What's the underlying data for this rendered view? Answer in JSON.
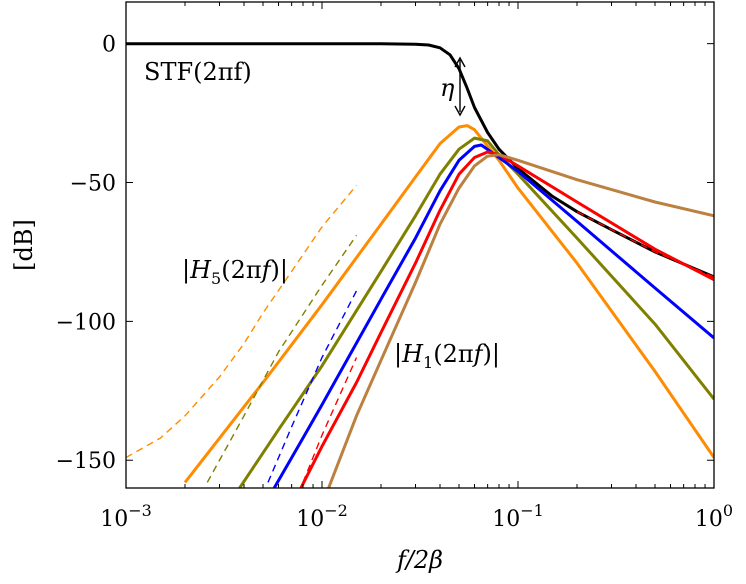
{
  "chart_data": {
    "type": "line",
    "title": "",
    "xlabel": "f/2β",
    "ylabel": "[dB]",
    "xscale": "log",
    "xlim": [
      0.001,
      1
    ],
    "ylim": [
      -160,
      15
    ],
    "grid": false,
    "xticks": [
      {
        "value": 0.001,
        "base": "10",
        "exp": "−3"
      },
      {
        "value": 0.01,
        "base": "10",
        "exp": "−2"
      },
      {
        "value": 0.1,
        "base": "10",
        "exp": "−1"
      },
      {
        "value": 1,
        "base": "10",
        "exp": "0"
      }
    ],
    "yticks": [
      {
        "value": 0,
        "label": "0"
      },
      {
        "value": -50,
        "label": "−50"
      },
      {
        "value": -100,
        "label": "−100"
      },
      {
        "value": -150,
        "label": "−150"
      }
    ],
    "annotations": {
      "stf": "STF(2πf)",
      "eta": "η",
      "h5": "|H5(2πf)|",
      "h1": "|H1(2πf)|"
    },
    "series": [
      {
        "name": "STF(2πf)",
        "color": "#000000",
        "dashed": false,
        "x": [
          0.001,
          0.02,
          0.03,
          0.035,
          0.04,
          0.045,
          0.05,
          0.055,
          0.06,
          0.07,
          0.08,
          0.1,
          0.15,
          0.2,
          0.3,
          0.5,
          1
        ],
        "y": [
          0,
          0,
          -0.2,
          -0.5,
          -1.5,
          -4,
          -9,
          -16,
          -23,
          -32,
          -38,
          -45,
          -55,
          -60.5,
          -67,
          -75,
          -84
        ]
      },
      {
        "name": "",
        "color": "#ff8c00",
        "dashed": false,
        "x": [
          0.002,
          0.005,
          0.01,
          0.02,
          0.03,
          0.04,
          0.05,
          0.055,
          0.06,
          0.08,
          0.1,
          0.2,
          0.5,
          1
        ],
        "y": [
          -158,
          -122,
          -94,
          -65,
          -48,
          -36,
          -30,
          -29.5,
          -31,
          -42,
          -52,
          -79,
          -118,
          -149
        ]
      },
      {
        "name": "",
        "color": "#808000",
        "dashed": false,
        "x": [
          0.0038,
          0.006,
          0.01,
          0.02,
          0.03,
          0.04,
          0.05,
          0.06,
          0.07,
          0.08,
          0.1,
          0.2,
          0.5,
          1
        ],
        "y": [
          -160,
          -139,
          -116,
          -82,
          -62,
          -47,
          -38,
          -34,
          -35,
          -40,
          -47,
          -70,
          -101,
          -128
        ]
      },
      {
        "name": "",
        "color": "#0000ff",
        "dashed": false,
        "x": [
          0.0057,
          0.008,
          0.01,
          0.02,
          0.03,
          0.04,
          0.05,
          0.06,
          0.065,
          0.08,
          0.1,
          0.2,
          0.5,
          1
        ],
        "y": [
          -160,
          -142,
          -130,
          -92,
          -70,
          -53,
          -42,
          -37,
          -36.5,
          -41,
          -46,
          -64,
          -88,
          -106
        ]
      },
      {
        "name": "",
        "color": "#ff0000",
        "dashed": false,
        "x": [
          0.0078,
          0.01,
          0.015,
          0.02,
          0.03,
          0.04,
          0.05,
          0.06,
          0.07,
          0.08,
          0.1,
          0.2,
          0.5,
          1
        ],
        "y": [
          -160,
          -145,
          -122,
          -104,
          -79,
          -60,
          -47,
          -41,
          -39,
          -40,
          -44,
          -57,
          -74,
          -85
        ]
      },
      {
        "name": "",
        "color": "#bc8040",
        "dashed": false,
        "x": [
          0.0108,
          0.015,
          0.02,
          0.03,
          0.04,
          0.05,
          0.06,
          0.07,
          0.08,
          0.1,
          0.2,
          0.5,
          1
        ],
        "y": [
          -160,
          -134,
          -114,
          -86,
          -65,
          -52,
          -44,
          -40.5,
          -40,
          -42,
          -49,
          -57,
          -62
        ]
      },
      {
        "name": "",
        "color": "#ff8c00",
        "dashed": true,
        "x": [
          0.001,
          0.0015,
          0.002,
          0.003,
          0.004,
          0.005,
          0.007,
          0.01,
          0.015
        ],
        "y": [
          -149,
          -142,
          -134,
          -120,
          -108,
          -97,
          -82,
          -66,
          -51
        ]
      },
      {
        "name": "",
        "color": "#808000",
        "dashed": true,
        "x": [
          0.0026,
          0.004,
          0.006,
          0.01,
          0.015
        ],
        "y": [
          -158,
          -134,
          -111,
          -87,
          -69
        ]
      },
      {
        "name": "",
        "color": "#0000ff",
        "dashed": true,
        "x": [
          0.0053,
          0.007,
          0.01,
          0.015
        ],
        "y": [
          -158,
          -138,
          -113,
          -89
        ]
      },
      {
        "name": "",
        "color": "#ff0000",
        "dashed": true,
        "x": [
          0.008,
          0.01,
          0.015
        ],
        "y": [
          -158,
          -141,
          -113
        ]
      },
      {
        "name": "",
        "color": "#ff0000",
        "dashed": true,
        "x": [
          0.2,
          0.5,
          1
        ],
        "y": [
          -60.5,
          -75,
          -84
        ]
      }
    ]
  }
}
